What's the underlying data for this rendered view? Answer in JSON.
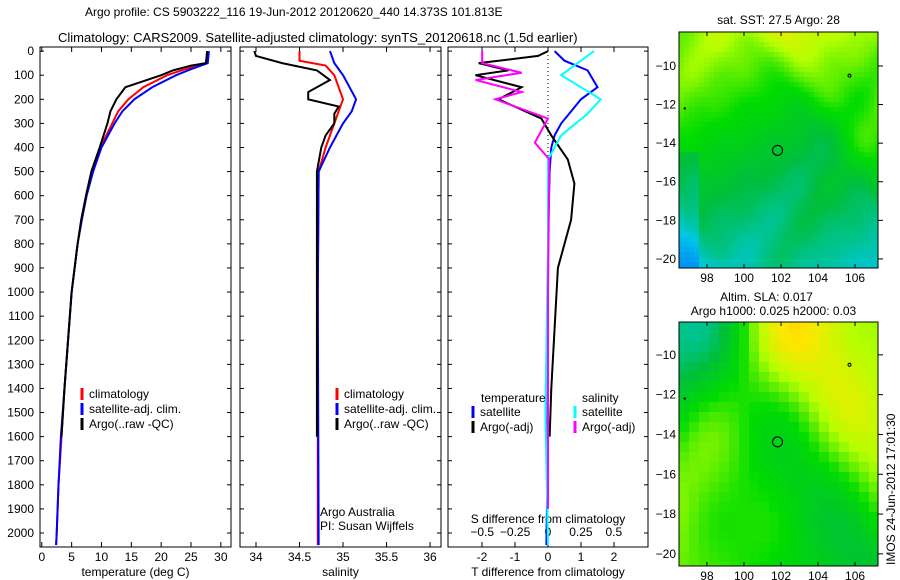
{
  "title_line1": "Argo profile: CS 5903222_116 19-Jun-2012 20120620_440 14.373S 101.813E",
  "title_line2": "Climatology: CARS2009. Satellite-adjusted climatology: synTS_20120618.nc (1.5d earlier)",
  "side_stamp": "IMOS 24-Jun-2012 17:01:30",
  "colors": {
    "climatology": "#ff0000",
    "satellite": "#0000ff",
    "argo": "#000000",
    "sal_satellite": "#00ffff",
    "sal_argo": "#ff00ff"
  },
  "chart_data": [
    {
      "type": "line",
      "name": "temperature-profile",
      "xlabel": "temperature (deg C)",
      "xlim": [
        -0.3,
        31.7
      ],
      "ylim": [
        -17,
        2058
      ],
      "xticks": [
        0,
        5,
        10,
        15,
        20,
        25,
        30
      ],
      "yticks": [
        0,
        100,
        200,
        300,
        400,
        500,
        600,
        700,
        800,
        900,
        1000,
        1100,
        1200,
        1300,
        1400,
        1500,
        1600,
        1700,
        1800,
        1900,
        2000
      ],
      "legend": [
        "climatology",
        "satellite-adj. clim.",
        "Argo(..raw -QC)"
      ],
      "series": [
        {
          "name": "climatology",
          "color": "#ff0000",
          "x": [
            27.8,
            27.5,
            24,
            21,
            17,
            14.5,
            12.8,
            11.8,
            9.8,
            8.5,
            7.5,
            6.7,
            6,
            5.5,
            5,
            4.4,
            3.8,
            3.3,
            2.8,
            2.5,
            2.4
          ],
          "y": [
            0,
            50,
            75,
            100,
            150,
            200,
            250,
            300,
            400,
            500,
            600,
            700,
            800,
            900,
            1000,
            1200,
            1400,
            1600,
            1800,
            2000,
            2050
          ]
        },
        {
          "name": "satellite-adj. clim.",
          "color": "#0000ff",
          "x": [
            28,
            27.8,
            25,
            22.5,
            18.5,
            15.5,
            13.5,
            12.2,
            10,
            8.6,
            7.5,
            6.7,
            6,
            5.5,
            5,
            4.4,
            3.8,
            3.2,
            2.8,
            2.5,
            2.4
          ],
          "y": [
            0,
            50,
            75,
            100,
            150,
            200,
            250,
            300,
            400,
            500,
            600,
            700,
            800,
            900,
            1000,
            1200,
            1400,
            1600,
            1800,
            2000,
            2050
          ]
        },
        {
          "name": "Argo(..raw -QC)",
          "color": "#000000",
          "x": [
            27.7,
            27.5,
            25,
            22,
            20,
            14,
            12.5,
            11.5,
            11,
            9.7,
            8.3,
            7.4,
            6.6,
            6,
            5.5,
            5,
            4.4,
            3.8,
            3.3
          ],
          "y": [
            0,
            50,
            60,
            80,
            100,
            150,
            200,
            250,
            300,
            400,
            500,
            600,
            700,
            800,
            900,
            1000,
            1200,
            1400,
            1600
          ]
        }
      ]
    },
    {
      "type": "line",
      "name": "salinity-profile",
      "xlabel": "salinity",
      "xlim": [
        33.816,
        36.126
      ],
      "ylim": [
        -17,
        2058
      ],
      "xticks": [
        34,
        34.5,
        35,
        35.5,
        36
      ],
      "legend": [
        "climatology",
        "satellite-adj. clim.",
        "Argo(..raw -QC)"
      ],
      "annotation": [
        "Argo Australia",
        "PI: Susan Wijffels"
      ],
      "series": [
        {
          "name": "climatology",
          "color": "#ff0000",
          "x": [
            34.5,
            34.5,
            34.8,
            34.9,
            34.95,
            35.0,
            34.95,
            34.9,
            34.8,
            34.72,
            34.71,
            34.71,
            34.71
          ],
          "y": [
            0,
            40,
            60,
            100,
            150,
            200,
            250,
            300,
            400,
            500,
            1000,
            1800,
            2050
          ]
        },
        {
          "name": "satellite-adj. clim.",
          "color": "#0000ff",
          "x": [
            34.85,
            34.9,
            35.0,
            35.15,
            35.1,
            35.0,
            34.85,
            34.72,
            34.71,
            34.72
          ],
          "y": [
            0,
            50,
            100,
            200,
            250,
            300,
            400,
            500,
            1000,
            2050
          ]
        },
        {
          "name": "Argo(..raw -QC)",
          "color": "#000000",
          "x": [
            33.98,
            34.0,
            34.3,
            34.7,
            34.85,
            34.6,
            34.6,
            34.95,
            34.9,
            34.9,
            34.8,
            34.75,
            34.7,
            34.7,
            34.7
          ],
          "y": [
            0,
            20,
            50,
            80,
            120,
            170,
            200,
            230,
            260,
            300,
            350,
            400,
            500,
            1000,
            1600
          ]
        }
      ]
    },
    {
      "type": "line",
      "name": "difference-profile",
      "xlabel": "T difference from climatology",
      "x2label": "S difference from climatology",
      "xlim": [
        -3.03,
        3.03
      ],
      "x2lim": [
        -0.76,
        0.76
      ],
      "ylim": [
        -17,
        2058
      ],
      "xticks": [
        -2,
        -1,
        0,
        1,
        2
      ],
      "x2ticks": [
        "-0.5",
        "-0.25",
        "0",
        "0.25",
        "0.5"
      ],
      "legend_headers": [
        "temperature",
        "salinity"
      ],
      "legend": [
        "satellite",
        "Argo(-adj)",
        "satellite",
        "Argo(-adj)"
      ],
      "series": [
        {
          "name": "T satellite",
          "axis": "T",
          "color": "#0000ff",
          "x": [
            0.2,
            0.5,
            1.2,
            1.5,
            1.0,
            0.7,
            0.4,
            0.2,
            0.1,
            0.05,
            0,
            0,
            -0.02,
            -0.05
          ],
          "y": [
            0,
            40,
            80,
            150,
            200,
            250,
            300,
            350,
            400,
            500,
            800,
            1200,
            1800,
            2050
          ]
        },
        {
          "name": "T Argo(-adj)",
          "axis": "T",
          "color": "#000000",
          "x": [
            0,
            -0.3,
            -2.1,
            -1.2,
            -2.2,
            -0.8,
            -1.5,
            -0.2,
            0.1,
            0.6,
            0.8,
            0.7,
            0.3,
            0.1,
            0.05
          ],
          "y": [
            0,
            20,
            50,
            80,
            100,
            150,
            200,
            280,
            350,
            450,
            550,
            700,
            900,
            1400,
            1600
          ]
        },
        {
          "name": "S satellite",
          "axis": "S",
          "color": "#00ffff",
          "x": [
            0.35,
            0.25,
            0.1,
            0.4,
            0.3,
            0.1,
            0,
            0,
            -0.02,
            0
          ],
          "y": [
            0,
            40,
            100,
            200,
            260,
            350,
            450,
            800,
            1500,
            2050
          ]
        },
        {
          "name": "S Argo(-adj)",
          "axis": "S",
          "color": "#ff00ff",
          "x": [
            -0.5,
            -0.5,
            -0.2,
            -0.55,
            -0.2,
            -0.4,
            0,
            -0.1,
            0.01,
            0,
            0
          ],
          "y": [
            0,
            50,
            90,
            120,
            170,
            200,
            280,
            380,
            450,
            1000,
            1900
          ]
        }
      ]
    },
    {
      "type": "heatmap",
      "name": "sst-map",
      "title": "sat. SST: 27.5 Argo: 28",
      "xticks": [
        98,
        100,
        102,
        104,
        106
      ],
      "yticks": [
        -10,
        -12,
        -14,
        -16,
        -18,
        -20
      ],
      "xlim": [
        96.49,
        107.24
      ],
      "ylim": [
        -20.47,
        -8.24
      ],
      "argo_position": [
        101.813,
        -14.373
      ]
    },
    {
      "type": "heatmap",
      "name": "sla-map",
      "title": [
        "Altim. SLA: 0.017",
        "Argo h1000: 0.025 h2000: 0.03"
      ],
      "xticks": [
        98,
        100,
        102,
        104,
        106
      ],
      "yticks": [
        -10,
        -12,
        -14,
        -16,
        -18,
        -20
      ],
      "xlim": [
        96.49,
        107.24
      ],
      "ylim": [
        -20.61,
        -8.35
      ],
      "argo_position": [
        101.813,
        -14.373
      ]
    }
  ]
}
